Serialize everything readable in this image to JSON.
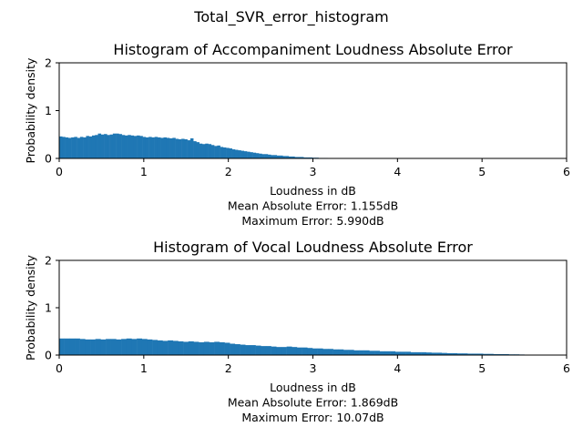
{
  "figure": {
    "suptitle": "Total_SVR_error_histogram"
  },
  "chart_data": [
    {
      "type": "bar",
      "title": "Histogram of Accompaniment Loudness Absolute Error",
      "xlabel_lines": [
        "Loudness in dB",
        "Mean Absolute Error: 1.155dB",
        "Maximum Error: 5.990dB"
      ],
      "ylabel": "Probability density",
      "xlim": [
        0,
        6
      ],
      "ylim": [
        0,
        2
      ],
      "xticks": [
        "0",
        "1",
        "2",
        "3",
        "4",
        "5",
        "6"
      ],
      "yticks": [
        "0",
        "1",
        "2"
      ],
      "color": "#1f77b4",
      "grid": false,
      "bin_range": [
        0,
        5.99
      ],
      "values": [
        0.46,
        0.45,
        0.44,
        0.43,
        0.44,
        0.45,
        0.43,
        0.45,
        0.44,
        0.47,
        0.46,
        0.48,
        0.49,
        0.52,
        0.5,
        0.51,
        0.49,
        0.5,
        0.52,
        0.52,
        0.51,
        0.49,
        0.48,
        0.49,
        0.48,
        0.47,
        0.48,
        0.47,
        0.45,
        0.44,
        0.45,
        0.44,
        0.45,
        0.44,
        0.43,
        0.44,
        0.43,
        0.42,
        0.43,
        0.41,
        0.4,
        0.41,
        0.4,
        0.38,
        0.42,
        0.36,
        0.34,
        0.31,
        0.3,
        0.31,
        0.3,
        0.28,
        0.26,
        0.27,
        0.24,
        0.23,
        0.22,
        0.21,
        0.19,
        0.18,
        0.17,
        0.16,
        0.15,
        0.14,
        0.13,
        0.12,
        0.11,
        0.1,
        0.09,
        0.09,
        0.08,
        0.07,
        0.07,
        0.06,
        0.06,
        0.05,
        0.05,
        0.04,
        0.04,
        0.03,
        0.03,
        0.03,
        0.02,
        0.02,
        0.02,
        0.015,
        0.015,
        0.01,
        0.01,
        0.01,
        0.008,
        0.007,
        0.006,
        0.005,
        0.004,
        0.004,
        0.003,
        0.003,
        0.002,
        0.002,
        0.002,
        0.0015,
        0.0015,
        0.001,
        0.001,
        0.001,
        0.001,
        0.001,
        0.001,
        0.001,
        0.001,
        0.001,
        0.001,
        0.001,
        0.001,
        0.001,
        0.001,
        0.001,
        0.001,
        0.001,
        0.001,
        0.001,
        0.001,
        0.001,
        0.001,
        0.001,
        0.001,
        0.001,
        0.001,
        0.001,
        0.001,
        0.001,
        0.001,
        0.001,
        0.001,
        0.001,
        0.001,
        0.001,
        0.001,
        0.001,
        0.001,
        0.001,
        0.001,
        0.001,
        0.001,
        0.001,
        0.001,
        0.001,
        0.001,
        0.001,
        0.001,
        0.001,
        0.001,
        0.001,
        0.001,
        0.001,
        0.001,
        0.001,
        0.001,
        0.001,
        0.001,
        0.001,
        0.001,
        0.001,
        0.001,
        0.001,
        0.001,
        0.001,
        0.001,
        0.001
      ]
    },
    {
      "type": "bar",
      "title": "Histogram of Vocal Loudness Absolute Error",
      "xlabel_lines": [
        "Loudness in dB",
        "Mean Absolute Error: 1.869dB",
        "Maximum Error: 10.07dB"
      ],
      "ylabel": "Probability density",
      "xlim": [
        0,
        6
      ],
      "ylim": [
        0,
        2
      ],
      "xticks": [
        "0",
        "1",
        "2",
        "3",
        "4",
        "5",
        "6"
      ],
      "yticks": [
        "0",
        "1",
        "2"
      ],
      "color": "#1f77b4",
      "grid": false,
      "bin_range": [
        0,
        5.5
      ],
      "values": [
        0.35,
        0.35,
        0.35,
        0.35,
        0.34,
        0.33,
        0.33,
        0.34,
        0.33,
        0.34,
        0.34,
        0.33,
        0.34,
        0.35,
        0.34,
        0.35,
        0.34,
        0.33,
        0.32,
        0.31,
        0.3,
        0.31,
        0.3,
        0.29,
        0.28,
        0.29,
        0.28,
        0.27,
        0.28,
        0.27,
        0.28,
        0.27,
        0.26,
        0.24,
        0.23,
        0.22,
        0.21,
        0.21,
        0.2,
        0.19,
        0.19,
        0.18,
        0.17,
        0.17,
        0.18,
        0.17,
        0.16,
        0.16,
        0.15,
        0.14,
        0.14,
        0.13,
        0.13,
        0.12,
        0.12,
        0.11,
        0.11,
        0.1,
        0.1,
        0.1,
        0.09,
        0.09,
        0.08,
        0.08,
        0.08,
        0.07,
        0.07,
        0.07,
        0.06,
        0.06,
        0.06,
        0.055,
        0.05,
        0.05,
        0.045,
        0.04,
        0.04,
        0.035,
        0.035,
        0.03,
        0.03,
        0.03,
        0.025,
        0.025,
        0.02,
        0.02,
        0.02,
        0.015,
        0.015,
        0.012
      ]
    }
  ]
}
